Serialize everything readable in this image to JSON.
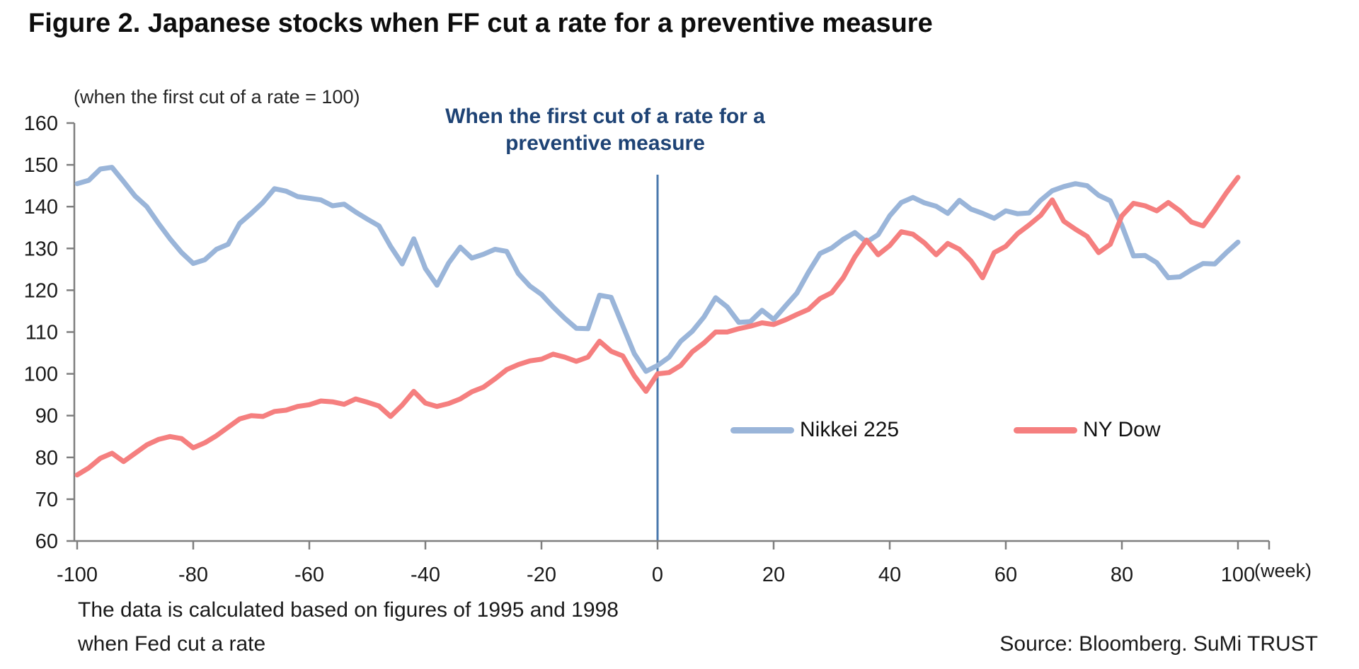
{
  "figure": {
    "title": "Figure 2. Japanese stocks when FF cut a rate for a preventive measure",
    "axis_unit_note": "(when the first cut of a rate = 100)",
    "annotation": {
      "line1": "When the first cut of a rate for a",
      "line2": "preventive measure"
    },
    "x_axis_unit": "(week)",
    "footnote_line1": "The data is calculated based on figures of 1995 and 1998",
    "footnote_line2": "when Fed cut a rate",
    "source": "Source: Bloomberg. SuMi TRUST"
  },
  "colors": {
    "nikkei_line": "#9AB5D9",
    "ny_dow_line": "#F57F7F",
    "event_line": "#4A78AD",
    "axis": "#7F7F7F",
    "annotation_text": "#1E4375",
    "title_text": "#0D0D0D"
  },
  "chart_data": {
    "type": "line",
    "title": "Figure 2. Japanese stocks when FF cut a rate for a preventive measure",
    "xlabel": "(week)",
    "ylabel": "(when the first cut of a rate = 100)",
    "xlim": [
      -100,
      100
    ],
    "ylim": [
      60,
      160
    ],
    "grid": false,
    "legend_position": "inside-right",
    "x_ticks": [
      -100,
      -80,
      -60,
      -40,
      -20,
      0,
      20,
      40,
      60,
      80,
      100
    ],
    "y_ticks": [
      60,
      70,
      80,
      90,
      100,
      110,
      120,
      130,
      140,
      150,
      160
    ],
    "event_line": {
      "x": 0,
      "color": "#4A78AD",
      "label_line1": "When the first cut of a rate for a",
      "label_line2": "preventive measure"
    },
    "x": [
      -100,
      -98,
      -96,
      -94,
      -92,
      -90,
      -88,
      -86,
      -84,
      -82,
      -80,
      -78,
      -76,
      -74,
      -72,
      -70,
      -68,
      -66,
      -64,
      -62,
      -60,
      -58,
      -56,
      -54,
      -52,
      -50,
      -48,
      -46,
      -44,
      -42,
      -40,
      -38,
      -36,
      -34,
      -32,
      -30,
      -28,
      -26,
      -24,
      -22,
      -20,
      -18,
      -16,
      -14,
      -12,
      -10,
      -8,
      -6,
      -4,
      -2,
      0,
      2,
      4,
      6,
      8,
      10,
      12,
      14,
      16,
      18,
      20,
      22,
      24,
      26,
      28,
      30,
      32,
      34,
      36,
      38,
      40,
      42,
      44,
      46,
      48,
      50,
      52,
      54,
      56,
      58,
      60,
      62,
      64,
      66,
      68,
      70,
      72,
      74,
      76,
      78,
      80,
      82,
      84,
      86,
      88,
      90,
      92,
      94,
      96,
      98,
      100
    ],
    "series": [
      {
        "name": "Nikkei 225",
        "color": "#9AB5D9",
        "values": [
          145.5,
          146.3,
          149.0,
          149.4,
          146.0,
          142.5,
          140.0,
          136.0,
          132.3,
          129.0,
          126.4,
          127.3,
          129.8,
          131.0,
          136.0,
          138.4,
          141.0,
          144.3,
          143.7,
          142.4,
          142.0,
          141.6,
          140.2,
          140.6,
          138.7,
          137.0,
          135.4,
          130.5,
          126.3,
          132.3,
          125.2,
          121.2,
          126.5,
          130.3,
          127.7,
          128.6,
          129.8,
          129.3,
          124.0,
          121.0,
          119.0,
          116.0,
          113.3,
          110.9,
          110.8,
          118.8,
          118.3,
          111.5,
          104.8,
          100.6,
          102.0,
          104.0,
          107.8,
          110.2,
          113.6,
          118.2,
          116.0,
          112.3,
          112.5,
          115.2,
          113.0,
          116.2,
          119.3,
          124.3,
          128.8,
          130.1,
          132.2,
          133.8,
          131.5,
          133.3,
          137.8,
          141.0,
          142.2,
          140.9,
          140.1,
          138.4,
          141.5,
          139.4,
          138.4,
          137.2,
          139.0,
          138.3,
          138.5,
          141.5,
          143.8,
          144.8,
          145.5,
          145.0,
          142.7,
          141.4,
          135.5,
          128.2,
          128.3,
          126.6,
          123.0,
          123.2,
          124.9,
          126.4,
          126.3,
          129.0,
          131.5
        ]
      },
      {
        "name": "NY Dow",
        "color": "#F57F7F",
        "values": [
          75.8,
          77.5,
          79.8,
          81.0,
          79.0,
          81.0,
          83.0,
          84.3,
          85.0,
          84.5,
          82.3,
          83.5,
          85.2,
          87.2,
          89.2,
          90.0,
          89.8,
          91.0,
          91.3,
          92.2,
          92.6,
          93.5,
          93.3,
          92.7,
          94.0,
          93.2,
          92.3,
          89.8,
          92.5,
          95.8,
          93.0,
          92.2,
          92.9,
          94.0,
          95.7,
          96.8,
          98.8,
          101.0,
          102.2,
          103.1,
          103.5,
          104.7,
          104.0,
          103.0,
          104.0,
          107.8,
          105.4,
          104.3,
          99.5,
          95.8,
          100.0,
          100.3,
          102.0,
          105.3,
          107.4,
          110.0,
          110.0,
          110.8,
          111.4,
          112.2,
          111.8,
          112.9,
          114.2,
          115.4,
          118.0,
          119.4,
          123.0,
          128.0,
          132.0,
          128.5,
          130.7,
          134.0,
          133.4,
          131.3,
          128.5,
          131.2,
          129.8,
          127.0,
          123.0,
          129.0,
          130.5,
          133.5,
          135.6,
          137.9,
          141.6,
          136.5,
          134.6,
          132.9,
          129.0,
          131.0,
          137.8,
          140.8,
          140.2,
          139.0,
          141.0,
          139.0,
          136.3,
          135.4,
          139.2,
          143.3,
          147.0
        ]
      }
    ]
  }
}
